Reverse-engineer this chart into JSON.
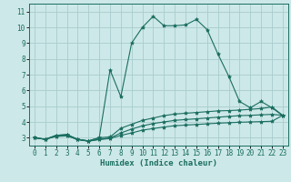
{
  "background_color": "#cde8e8",
  "grid_color": "#a8cccc",
  "line_color": "#1a6e60",
  "xlabel": "Humidex (Indice chaleur)",
  "xlim": [
    -0.5,
    23.5
  ],
  "ylim": [
    2.5,
    11.5
  ],
  "xticks": [
    0,
    1,
    2,
    3,
    4,
    5,
    6,
    7,
    8,
    9,
    10,
    11,
    12,
    13,
    14,
    15,
    16,
    17,
    18,
    19,
    20,
    21,
    22,
    23
  ],
  "yticks": [
    3,
    4,
    5,
    6,
    7,
    8,
    9,
    10,
    11
  ],
  "series": [
    {
      "x": [
        0,
        1,
        2,
        3,
        4,
        5,
        6,
        7,
        8,
        9,
        10,
        11,
        12,
        13,
        14,
        15,
        16,
        17,
        18,
        19,
        20,
        21,
        22,
        23
      ],
      "y": [
        3.0,
        2.9,
        3.15,
        3.2,
        2.9,
        2.8,
        3.0,
        7.3,
        5.6,
        9.0,
        10.0,
        10.7,
        10.1,
        10.1,
        10.15,
        10.5,
        9.85,
        8.3,
        6.9,
        5.3,
        4.9,
        5.3,
        4.9,
        4.4
      ]
    },
    {
      "x": [
        0,
        1,
        2,
        3,
        4,
        5,
        6,
        7,
        8,
        9,
        10,
        11,
        12,
        13,
        14,
        15,
        16,
        17,
        18,
        19,
        20,
        21,
        22,
        23
      ],
      "y": [
        3.0,
        2.9,
        3.15,
        3.2,
        2.9,
        2.8,
        3.0,
        3.05,
        3.6,
        3.85,
        4.1,
        4.25,
        4.4,
        4.5,
        4.55,
        4.6,
        4.65,
        4.7,
        4.72,
        4.75,
        4.8,
        4.85,
        4.95,
        4.42
      ]
    },
    {
      "x": [
        0,
        1,
        2,
        3,
        4,
        5,
        6,
        7,
        8,
        9,
        10,
        11,
        12,
        13,
        14,
        15,
        16,
        17,
        18,
        19,
        20,
        21,
        22,
        23
      ],
      "y": [
        3.0,
        2.9,
        3.1,
        3.15,
        2.88,
        2.78,
        2.9,
        2.98,
        3.3,
        3.55,
        3.75,
        3.9,
        4.0,
        4.1,
        4.15,
        4.2,
        4.25,
        4.3,
        4.35,
        4.4,
        4.42,
        4.45,
        4.48,
        4.42
      ]
    },
    {
      "x": [
        0,
        1,
        2,
        3,
        4,
        5,
        6,
        7,
        8,
        9,
        10,
        11,
        12,
        13,
        14,
        15,
        16,
        17,
        18,
        19,
        20,
        21,
        22,
        23
      ],
      "y": [
        3.0,
        2.9,
        3.08,
        3.12,
        2.88,
        2.78,
        2.88,
        2.95,
        3.15,
        3.3,
        3.48,
        3.58,
        3.68,
        3.76,
        3.8,
        3.84,
        3.88,
        3.92,
        3.95,
        3.98,
        4.0,
        4.02,
        4.04,
        4.42
      ]
    }
  ]
}
